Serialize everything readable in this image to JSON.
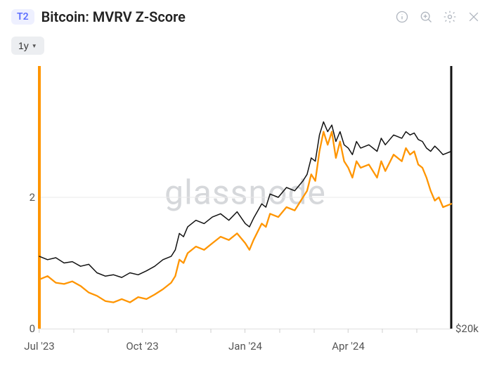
{
  "header": {
    "badge": "T2",
    "title": "Bitcoin: MVRV Z-Score"
  },
  "toolbar": {
    "range_label": "1y"
  },
  "chart": {
    "type": "line",
    "watermark": "glassnode",
    "background_color": "#ffffff",
    "grid_line_color": "#e9e9e9",
    "left_axis_bar_color": "#ff9500",
    "right_axis_bar_color": "#111111",
    "x_tick_baseline_color": "#e0e0e0",
    "ylim_left": [
      0,
      4
    ],
    "y_ticks_left": [
      {
        "value": 0,
        "label": "0"
      },
      {
        "value": 2,
        "label": "2"
      }
    ],
    "y_ticks_right": [
      {
        "value": 0,
        "label": "$20k"
      }
    ],
    "x_ticks": [
      {
        "t": 0.0,
        "label": "Jul '23",
        "major": true
      },
      {
        "t": 0.083,
        "label": "",
        "major": false
      },
      {
        "t": 0.167,
        "label": "",
        "major": false
      },
      {
        "t": 0.25,
        "label": "Oct '23",
        "major": true
      },
      {
        "t": 0.333,
        "label": "",
        "major": false
      },
      {
        "t": 0.417,
        "label": "",
        "major": false
      },
      {
        "t": 0.5,
        "label": "Jan '24",
        "major": true
      },
      {
        "t": 0.583,
        "label": "",
        "major": false
      },
      {
        "t": 0.667,
        "label": "",
        "major": false
      },
      {
        "t": 0.75,
        "label": "Apr '24",
        "major": true
      },
      {
        "t": 0.833,
        "label": "",
        "major": false
      },
      {
        "t": 0.917,
        "label": "",
        "major": false
      }
    ],
    "gridlines_y": [
      2
    ],
    "series": [
      {
        "name": "mvrv-z-score",
        "color": "#ff9500",
        "width": 2.3,
        "points": [
          [
            0.0,
            0.75
          ],
          [
            0.02,
            0.8
          ],
          [
            0.04,
            0.7
          ],
          [
            0.06,
            0.68
          ],
          [
            0.08,
            0.72
          ],
          [
            0.1,
            0.65
          ],
          [
            0.12,
            0.55
          ],
          [
            0.14,
            0.5
          ],
          [
            0.16,
            0.42
          ],
          [
            0.18,
            0.4
          ],
          [
            0.2,
            0.45
          ],
          [
            0.22,
            0.4
          ],
          [
            0.24,
            0.48
          ],
          [
            0.26,
            0.45
          ],
          [
            0.28,
            0.52
          ],
          [
            0.3,
            0.6
          ],
          [
            0.32,
            0.7
          ],
          [
            0.33,
            0.8
          ],
          [
            0.34,
            1.05
          ],
          [
            0.35,
            1.0
          ],
          [
            0.36,
            1.15
          ],
          [
            0.38,
            1.25
          ],
          [
            0.4,
            1.2
          ],
          [
            0.42,
            1.3
          ],
          [
            0.44,
            1.4
          ],
          [
            0.46,
            1.35
          ],
          [
            0.48,
            1.45
          ],
          [
            0.5,
            1.3
          ],
          [
            0.51,
            1.2
          ],
          [
            0.52,
            1.35
          ],
          [
            0.54,
            1.6
          ],
          [
            0.55,
            1.55
          ],
          [
            0.56,
            1.75
          ],
          [
            0.58,
            1.7
          ],
          [
            0.6,
            1.85
          ],
          [
            0.62,
            1.8
          ],
          [
            0.64,
            2.0
          ],
          [
            0.65,
            2.1
          ],
          [
            0.66,
            2.35
          ],
          [
            0.67,
            2.25
          ],
          [
            0.68,
            2.7
          ],
          [
            0.69,
            3.0
          ],
          [
            0.7,
            2.8
          ],
          [
            0.71,
            3.0
          ],
          [
            0.72,
            2.6
          ],
          [
            0.73,
            2.85
          ],
          [
            0.74,
            2.55
          ],
          [
            0.75,
            2.45
          ],
          [
            0.76,
            2.3
          ],
          [
            0.77,
            2.55
          ],
          [
            0.78,
            2.45
          ],
          [
            0.8,
            2.5
          ],
          [
            0.82,
            2.3
          ],
          [
            0.83,
            2.55
          ],
          [
            0.84,
            2.4
          ],
          [
            0.86,
            2.65
          ],
          [
            0.88,
            2.55
          ],
          [
            0.89,
            2.75
          ],
          [
            0.9,
            2.65
          ],
          [
            0.91,
            2.7
          ],
          [
            0.92,
            2.5
          ],
          [
            0.93,
            2.45
          ],
          [
            0.94,
            2.3
          ],
          [
            0.95,
            2.1
          ],
          [
            0.96,
            1.95
          ],
          [
            0.97,
            2.0
          ],
          [
            0.98,
            1.85
          ],
          [
            1.0,
            1.9
          ]
        ]
      },
      {
        "name": "price",
        "color": "#111111",
        "width": 1.5,
        "points": [
          [
            0.0,
            1.1
          ],
          [
            0.02,
            1.05
          ],
          [
            0.04,
            1.08
          ],
          [
            0.06,
            1.0
          ],
          [
            0.08,
            1.02
          ],
          [
            0.1,
            0.95
          ],
          [
            0.12,
            0.98
          ],
          [
            0.14,
            0.85
          ],
          [
            0.16,
            0.8
          ],
          [
            0.18,
            0.82
          ],
          [
            0.2,
            0.78
          ],
          [
            0.22,
            0.85
          ],
          [
            0.24,
            0.82
          ],
          [
            0.26,
            0.88
          ],
          [
            0.28,
            0.95
          ],
          [
            0.3,
            1.05
          ],
          [
            0.32,
            1.1
          ],
          [
            0.33,
            1.2
          ],
          [
            0.34,
            1.45
          ],
          [
            0.35,
            1.4
          ],
          [
            0.36,
            1.55
          ],
          [
            0.38,
            1.65
          ],
          [
            0.4,
            1.6
          ],
          [
            0.42,
            1.7
          ],
          [
            0.44,
            1.75
          ],
          [
            0.46,
            1.65
          ],
          [
            0.48,
            1.78
          ],
          [
            0.5,
            1.6
          ],
          [
            0.51,
            1.55
          ],
          [
            0.52,
            1.68
          ],
          [
            0.54,
            1.9
          ],
          [
            0.55,
            1.85
          ],
          [
            0.56,
            2.05
          ],
          [
            0.58,
            2.0
          ],
          [
            0.6,
            2.15
          ],
          [
            0.62,
            2.1
          ],
          [
            0.64,
            2.25
          ],
          [
            0.65,
            2.35
          ],
          [
            0.66,
            2.6
          ],
          [
            0.67,
            2.55
          ],
          [
            0.68,
            2.95
          ],
          [
            0.69,
            3.15
          ],
          [
            0.7,
            3.0
          ],
          [
            0.71,
            3.1
          ],
          [
            0.72,
            2.85
          ],
          [
            0.73,
            3.0
          ],
          [
            0.74,
            2.8
          ],
          [
            0.75,
            2.75
          ],
          [
            0.76,
            2.65
          ],
          [
            0.77,
            2.85
          ],
          [
            0.78,
            2.75
          ],
          [
            0.8,
            2.8
          ],
          [
            0.82,
            2.7
          ],
          [
            0.83,
            2.9
          ],
          [
            0.84,
            2.8
          ],
          [
            0.86,
            2.95
          ],
          [
            0.88,
            2.9
          ],
          [
            0.89,
            3.0
          ],
          [
            0.9,
            2.95
          ],
          [
            0.91,
            2.98
          ],
          [
            0.92,
            2.88
          ],
          [
            0.93,
            2.85
          ],
          [
            0.94,
            2.75
          ],
          [
            0.95,
            2.7
          ],
          [
            0.96,
            2.78
          ],
          [
            0.97,
            2.72
          ],
          [
            0.98,
            2.65
          ],
          [
            1.0,
            2.7
          ]
        ]
      }
    ]
  }
}
